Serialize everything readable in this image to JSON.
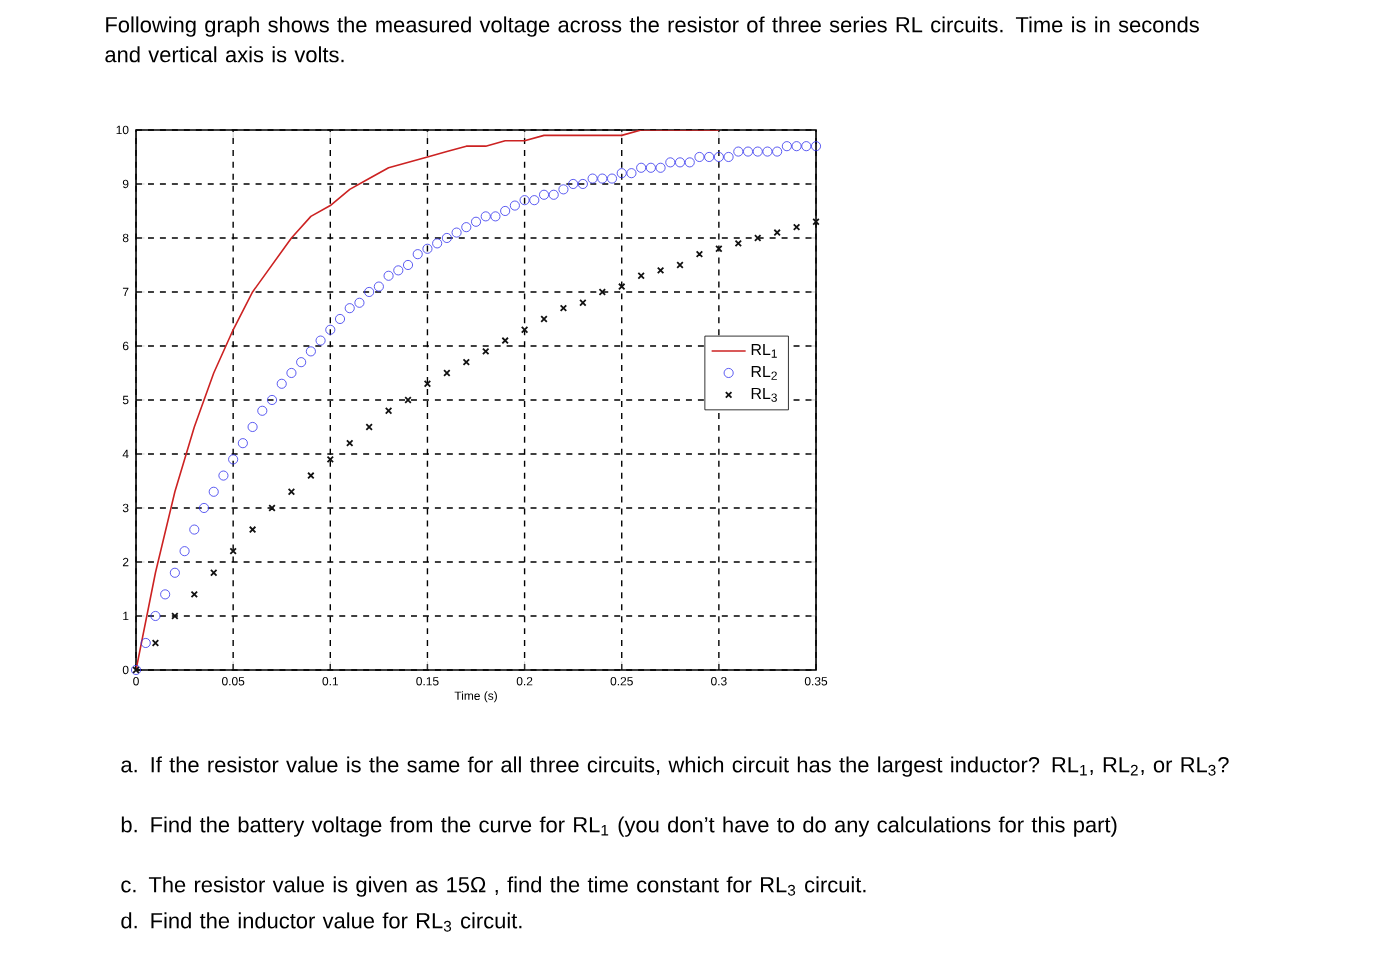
{
  "chart_data": {
    "type": "line",
    "title": "Following graph shows the measured voltage across the resistor of three series RL circuits. Time is in seconds and vertical axis is volts.",
    "xlabel": "Time (s)",
    "xlim": [
      0,
      0.35
    ],
    "ylim": [
      0,
      10
    ],
    "xticks": [
      0,
      0.05,
      0.1,
      0.15,
      0.2,
      0.25,
      0.3,
      0.35
    ],
    "yticks": [
      0,
      1,
      2,
      3,
      4,
      5,
      6,
      7,
      8,
      9,
      10
    ],
    "grid": true,
    "legend": "right",
    "series": [
      {
        "name": "RL$_{1}$",
        "color": "#cc2222",
        "marker": "none",
        "line_style": "solid",
        "x": [
          0,
          0.01,
          0.02,
          0.03,
          0.04,
          0.05,
          0.06,
          0.07,
          0.08,
          0.09,
          0.1,
          0.11,
          0.12,
          0.13,
          0.14,
          0.15,
          0.16,
          0.17,
          0.18,
          0.19,
          0.2,
          0.21,
          0.22,
          0.23,
          0.24,
          0.25,
          0.26,
          0.27,
          0.28,
          0.29,
          0.3
        ],
        "values": [
          0,
          1.8,
          3.3,
          4.5,
          5.5,
          6.3,
          7.0,
          7.5,
          8.0,
          8.4,
          8.6,
          8.9,
          9.1,
          9.3,
          9.4,
          9.5,
          9.6,
          9.7,
          9.7,
          9.8,
          9.8,
          9.9,
          9.9,
          9.9,
          9.9,
          9.9,
          10.0,
          10.0,
          10.0,
          10.0,
          10.0
        ]
      },
      {
        "name": "RL$_{2}$",
        "type": "scatter",
        "color": "#3333ee",
        "marker": "circle",
        "x": [
          0,
          0.005,
          0.01,
          0.015,
          0.02,
          0.025,
          0.03,
          0.035,
          0.04,
          0.045,
          0.05,
          0.055,
          0.06,
          0.065,
          0.07,
          0.075,
          0.08,
          0.085,
          0.09,
          0.095,
          0.1,
          0.105,
          0.11,
          0.115,
          0.12,
          0.125,
          0.13,
          0.135,
          0.14,
          0.145,
          0.15,
          0.155,
          0.16,
          0.165,
          0.17,
          0.175,
          0.18,
          0.185,
          0.19,
          0.195,
          0.2,
          0.205,
          0.21,
          0.215,
          0.22,
          0.225,
          0.23,
          0.235,
          0.24,
          0.245,
          0.25,
          0.255,
          0.26,
          0.265,
          0.27,
          0.275,
          0.28,
          0.285,
          0.29,
          0.295,
          0.3,
          0.305,
          0.31,
          0.315,
          0.32,
          0.325,
          0.33,
          0.335,
          0.34,
          0.345,
          0.35
        ],
        "values": [
          0,
          0.5,
          1.0,
          1.4,
          1.8,
          2.2,
          2.6,
          3.0,
          3.3,
          3.6,
          3.9,
          4.2,
          4.5,
          4.8,
          5.0,
          5.3,
          5.5,
          5.7,
          5.9,
          6.1,
          6.3,
          6.5,
          6.7,
          6.8,
          7.0,
          7.1,
          7.3,
          7.4,
          7.5,
          7.7,
          7.8,
          7.9,
          8.0,
          8.1,
          8.2,
          8.3,
          8.4,
          8.4,
          8.5,
          8.6,
          8.7,
          8.7,
          8.8,
          8.8,
          8.9,
          9.0,
          9.0,
          9.1,
          9.1,
          9.1,
          9.2,
          9.2,
          9.3,
          9.3,
          9.3,
          9.4,
          9.4,
          9.4,
          9.5,
          9.5,
          9.5,
          9.5,
          9.6,
          9.6,
          9.6,
          9.6,
          9.6,
          9.7,
          9.7,
          9.7,
          9.7
        ]
      },
      {
        "name": "RL$_{3}$",
        "type": "scatter",
        "color": "#111111",
        "marker": "cross",
        "x": [
          0,
          0.01,
          0.02,
          0.03,
          0.04,
          0.05,
          0.06,
          0.07,
          0.08,
          0.09,
          0.1,
          0.11,
          0.12,
          0.13,
          0.14,
          0.15,
          0.16,
          0.17,
          0.18,
          0.19,
          0.2,
          0.21,
          0.22,
          0.23,
          0.24,
          0.25,
          0.26,
          0.27,
          0.28,
          0.29,
          0.3,
          0.31,
          0.32,
          0.33,
          0.34,
          0.35
        ],
        "values": [
          0,
          0.5,
          1.0,
          1.4,
          1.8,
          2.2,
          2.6,
          3.0,
          3.3,
          3.6,
          3.9,
          4.2,
          4.5,
          4.8,
          5.0,
          5.3,
          5.5,
          5.7,
          5.9,
          6.1,
          6.3,
          6.5,
          6.7,
          6.8,
          7.0,
          7.1,
          7.3,
          7.4,
          7.5,
          7.7,
          7.8,
          7.9,
          8.0,
          8.1,
          8.2,
          8.3
        ]
      }
    ],
    "annotations": [
      "a. If the resistor value is the same for all three circuits, which circuit has the largest inductor? RL$_{1}$, RL$_{2}$, or RL$_{3}$?",
      "b. Find the battery voltage from the curve for RL$_{1}$ (you don’t have to do any calculations for this part)",
      "c. The resistor value is given as 15Ω , find the time constant for RL$_{3}$ circuit.",
      "d. Find the inductor value for RL$_{3}$ circuit."
    ]
  }
}
